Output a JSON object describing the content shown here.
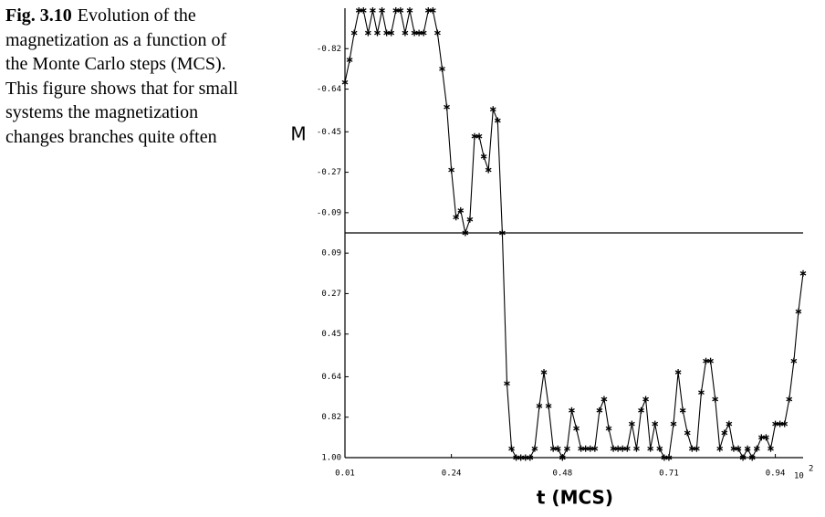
{
  "caption": {
    "label": "Fig. 3.10",
    "text": "Evolution of the magnetization as a function of the Monte Carlo steps (MCS). This figure shows that for small systems the magnetization changes branches quite often"
  },
  "chart_data": {
    "type": "line",
    "y_label": "M",
    "x_label": "t (MCS)",
    "x_scale_base": "10",
    "x_scale_exponent": "2",
    "x": [
      0.01,
      0.02,
      0.03,
      0.04,
      0.05,
      0.06,
      0.07,
      0.08,
      0.09,
      0.1,
      0.11,
      0.12,
      0.13,
      0.14,
      0.15,
      0.16,
      0.17,
      0.18,
      0.19,
      0.2,
      0.21,
      0.22,
      0.23,
      0.24,
      0.25,
      0.26,
      0.27,
      0.28,
      0.29,
      0.3,
      0.31,
      0.32,
      0.33,
      0.34,
      0.35,
      0.36,
      0.37,
      0.38,
      0.39,
      0.4,
      0.41,
      0.42,
      0.43,
      0.44,
      0.45,
      0.46,
      0.47,
      0.48,
      0.49,
      0.5,
      0.51,
      0.52,
      0.53,
      0.54,
      0.55,
      0.56,
      0.57,
      0.58,
      0.59,
      0.6,
      0.61,
      0.62,
      0.63,
      0.64,
      0.65,
      0.66,
      0.67,
      0.68,
      0.69,
      0.7,
      0.71,
      0.72,
      0.73,
      0.74,
      0.75,
      0.76,
      0.77,
      0.78,
      0.79,
      0.8,
      0.81,
      0.82,
      0.83,
      0.84,
      0.85,
      0.86,
      0.87,
      0.88,
      0.89,
      0.9,
      0.91,
      0.92,
      0.93,
      0.94,
      0.95,
      0.96,
      0.97,
      0.98,
      0.99,
      1.0
    ],
    "values": [
      -0.67,
      -0.77,
      -0.89,
      -0.99,
      -0.99,
      -0.89,
      -0.99,
      -0.89,
      -0.99,
      -0.89,
      -0.89,
      -0.99,
      -0.99,
      -0.89,
      -0.99,
      -0.89,
      -0.89,
      -0.89,
      -0.99,
      -0.99,
      -0.89,
      -0.73,
      -0.56,
      -0.28,
      -0.07,
      -0.1,
      0,
      -0.06,
      -0.43,
      -0.43,
      -0.34,
      -0.28,
      -0.55,
      -0.5,
      0,
      0.67,
      0.96,
      1,
      1,
      1,
      1,
      0.96,
      0.77,
      0.62,
      0.77,
      0.96,
      0.96,
      1,
      0.96,
      0.79,
      0.87,
      0.96,
      0.96,
      0.96,
      0.96,
      0.79,
      0.74,
      0.87,
      0.96,
      0.96,
      0.96,
      0.96,
      0.85,
      0.96,
      0.79,
      0.74,
      0.96,
      0.85,
      0.96,
      1,
      1,
      0.85,
      0.62,
      0.79,
      0.89,
      0.96,
      0.96,
      0.71,
      0.57,
      0.57,
      0.74,
      0.96,
      0.89,
      0.85,
      0.96,
      0.96,
      1,
      0.96,
      1,
      0.96,
      0.91,
      0.91,
      0.96,
      0.85,
      0.85,
      0.85,
      0.74,
      0.57,
      0.35,
      0.18
    ],
    "color": "#000000",
    "xlim": [
      0.01,
      1.0
    ],
    "xticks": [
      0.01,
      0.24,
      0.48,
      0.71,
      0.94
    ],
    "ylim": [
      1,
      -1
    ],
    "yticks": [
      -0.82,
      -0.64,
      -0.45,
      -0.27,
      -0.09,
      0.09,
      0.27,
      0.45,
      0.64,
      0.82,
      {
        "value": 1,
        "label": "1.00"
      }
    ],
    "hline": 0
  }
}
